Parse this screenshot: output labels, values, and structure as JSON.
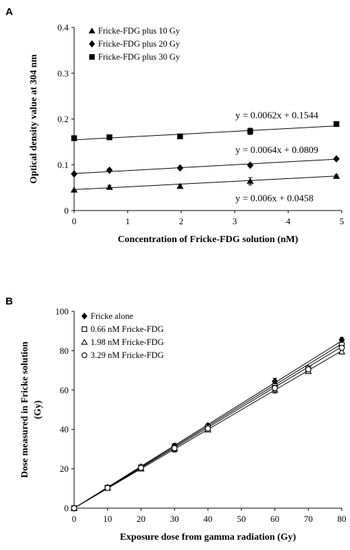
{
  "chart_data": [
    {
      "panel_label": "A",
      "type": "scatter",
      "xlabel": "Concentration of Fricke-FDG solution (nM)",
      "ylabel": "Optical density value at 304 nm",
      "xlim": [
        0,
        5
      ],
      "ylim": [
        0,
        0.4
      ],
      "xticks": [
        "0",
        "1",
        "2",
        "3",
        "4",
        "5"
      ],
      "yticks": [
        "0",
        "0.1",
        "0.2",
        "0.3",
        "0.4"
      ],
      "legend_position": "top-left",
      "grid": false,
      "series": [
        {
          "name": "Fricke-FDG plus 10 Gy",
          "marker": "triangle",
          "x": [
            0,
            0.66,
            1.98,
            3.29,
            4.9
          ],
          "y": [
            0.045,
            0.051,
            0.053,
            0.064,
            0.075
          ],
          "err": [
            0,
            0.004,
            0.004,
            0.008,
            0.003
          ],
          "trend": {
            "slope": 0.006,
            "intercept": 0.0458,
            "label": "y = 0.006x + 0.0458"
          }
        },
        {
          "name": "Fricke-FDG plus 20 Gy",
          "marker": "diamond",
          "x": [
            0,
            0.66,
            1.98,
            3.29,
            4.9
          ],
          "y": [
            0.08,
            0.088,
            0.093,
            0.099,
            0.113
          ],
          "err": [
            0,
            0.003,
            0.003,
            0.003,
            0.003
          ],
          "trend": {
            "slope": 0.0064,
            "intercept": 0.0809,
            "label": "y = 0.0064x + 0.0809"
          }
        },
        {
          "name": "Fricke-FDG plus 30 Gy",
          "marker": "square",
          "x": [
            0,
            0.66,
            1.98,
            3.29,
            4.9
          ],
          "y": [
            0.158,
            0.16,
            0.162,
            0.173,
            0.189
          ],
          "err": [
            0,
            0.002,
            0.003,
            0.007,
            0.003
          ],
          "trend": {
            "slope": 0.0062,
            "intercept": 0.1544,
            "label": "y = 0.0062x + 0.1544"
          }
        }
      ]
    },
    {
      "panel_label": "B",
      "type": "scatter",
      "xlabel": "Exposure dose from gamma radiation (Gy)",
      "ylabel": "Dose measured in Fricke solution (Gy)",
      "xlim": [
        0,
        80
      ],
      "ylim": [
        0,
        100
      ],
      "xticks": [
        "0",
        "10",
        "20",
        "30",
        "40",
        "50",
        "60",
        "70",
        "80"
      ],
      "yticks": [
        "0",
        "20",
        "40",
        "60",
        "80",
        "100"
      ],
      "legend_position": "top-left",
      "grid": false,
      "series": [
        {
          "name": "Fricke alone",
          "marker": "filled-diamond",
          "x": [
            0,
            10,
            20,
            30,
            40,
            60,
            70,
            80
          ],
          "y": [
            0,
            10.5,
            21,
            31.5,
            42,
            64.5,
            71,
            85.5
          ],
          "err": [
            0,
            0.5,
            0.8,
            1.5,
            1,
            1.5,
            1,
            1.2
          ],
          "fit_end": 85
        },
        {
          "name": "0.66 nM Fricke-FDG",
          "marker": "open-square",
          "x": [
            0,
            10,
            20,
            30,
            40,
            60,
            70,
            80
          ],
          "y": [
            0,
            10.4,
            20.7,
            31,
            41,
            62,
            71,
            83
          ],
          "err": [
            0,
            0.5,
            0.8,
            1.5,
            1,
            1.5,
            1,
            1.2
          ],
          "fit_end": 83.5
        },
        {
          "name": "1.98 nM Fricke-FDG",
          "marker": "open-triangle",
          "x": [
            0,
            10,
            20,
            30,
            40,
            60,
            70,
            80
          ],
          "y": [
            0,
            10.2,
            20,
            30,
            39.8,
            60,
            69.5,
            79.5
          ],
          "err": [
            0,
            0.5,
            0.8,
            1.5,
            1,
            1.5,
            1,
            1.2
          ],
          "fit_end": 80
        },
        {
          "name": "3.29 nM Fricke-FDG",
          "marker": "open-circle",
          "x": [
            0,
            10,
            20,
            30,
            40,
            60,
            70,
            80
          ],
          "y": [
            0,
            10.3,
            20.5,
            30.5,
            40.5,
            61,
            70.5,
            81.5
          ],
          "err": [
            0,
            0.5,
            0.8,
            1.5,
            1,
            1.5,
            1,
            1.2
          ],
          "fit_end": 82
        }
      ]
    }
  ]
}
